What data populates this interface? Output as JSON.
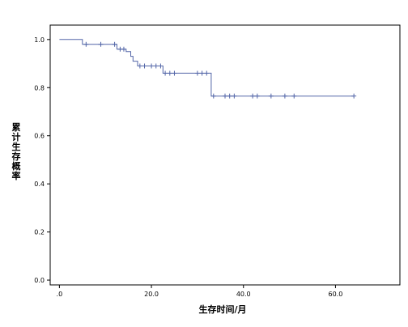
{
  "chart_data": {
    "type": "line",
    "title": "",
    "xlabel": "生存时间/月",
    "ylabel": "累计生存概率",
    "xlim": [
      -2,
      74
    ],
    "ylim": [
      -0.02,
      1.06
    ],
    "x_ticks": [
      0,
      20,
      40,
      60
    ],
    "x_tick_labels": [
      ".0",
      "20.0",
      "40.0",
      "60.0"
    ],
    "y_ticks": [
      0,
      0.2,
      0.4,
      0.6,
      0.8,
      1.0
    ],
    "y_tick_labels": [
      "0.0",
      "0.2",
      "0.4",
      "0.6",
      "0.8",
      "1.0"
    ],
    "grid": false,
    "series": [
      {
        "step_points": [
          [
            0,
            1.0
          ],
          [
            5,
            1.0
          ],
          [
            5,
            0.98
          ],
          [
            12.5,
            0.98
          ],
          [
            12.5,
            0.96
          ],
          [
            14.5,
            0.96
          ],
          [
            14.5,
            0.95
          ],
          [
            15.5,
            0.95
          ],
          [
            15.5,
            0.93
          ],
          [
            16,
            0.93
          ],
          [
            16,
            0.91
          ],
          [
            17,
            0.91
          ],
          [
            17,
            0.89
          ],
          [
            22.5,
            0.89
          ],
          [
            22.5,
            0.86
          ],
          [
            33,
            0.86
          ],
          [
            33,
            0.765
          ],
          [
            64,
            0.765
          ]
        ],
        "censored": [
          [
            5.8,
            0.98
          ],
          [
            9,
            0.98
          ],
          [
            12,
            0.98
          ],
          [
            13.2,
            0.96
          ],
          [
            14,
            0.96
          ],
          [
            17.5,
            0.89
          ],
          [
            18.5,
            0.89
          ],
          [
            20,
            0.89
          ],
          [
            21,
            0.89
          ],
          [
            22,
            0.89
          ],
          [
            23,
            0.86
          ],
          [
            24,
            0.86
          ],
          [
            25,
            0.86
          ],
          [
            30,
            0.86
          ],
          [
            31,
            0.86
          ],
          [
            32,
            0.86
          ],
          [
            33.5,
            0.765
          ],
          [
            36,
            0.765
          ],
          [
            37,
            0.765
          ],
          [
            38,
            0.765
          ],
          [
            42,
            0.765
          ],
          [
            43,
            0.765
          ],
          [
            46,
            0.765
          ],
          [
            49,
            0.765
          ],
          [
            51,
            0.765
          ],
          [
            64,
            0.765
          ]
        ]
      }
    ],
    "line_color": "#5366a8"
  }
}
